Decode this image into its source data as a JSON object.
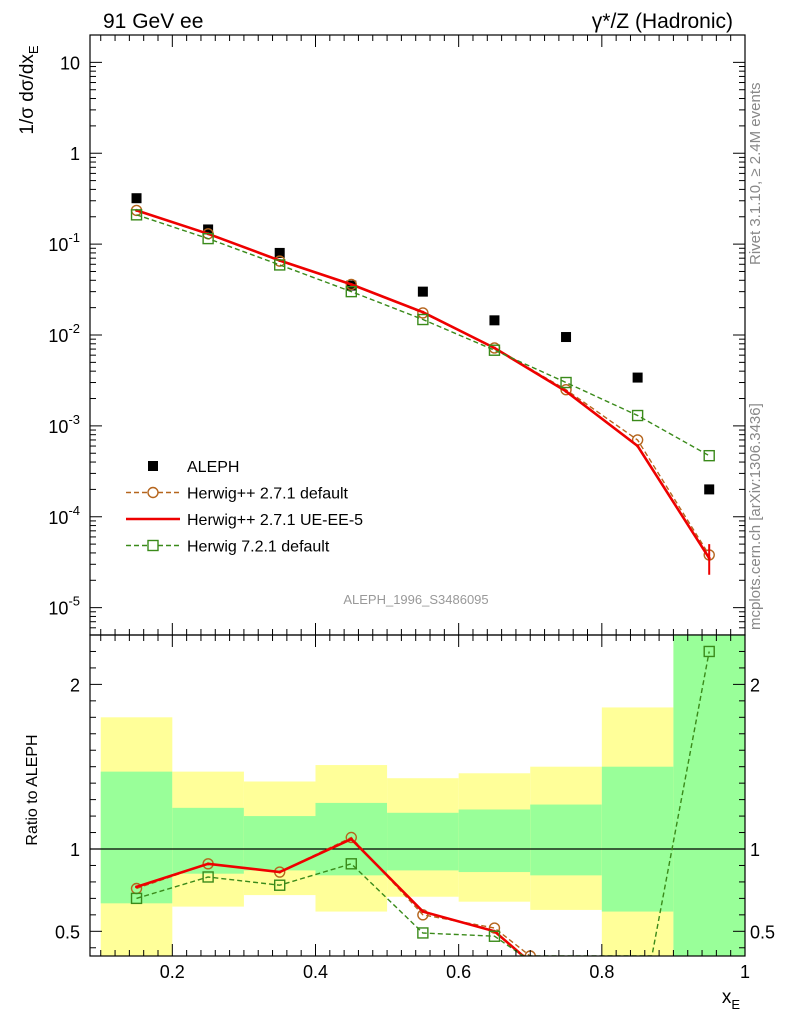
{
  "header": {
    "left": "91 GeV ee",
    "right": "γ*/Z (Hadronic)"
  },
  "side": {
    "rivet": "Rivet 3.1.10, ≥ 2.4M events",
    "mcplots": "mcplots.cern.ch [arXiv:1306.3436]"
  },
  "watermark": "ALEPH_1996_S3486095",
  "chart_data": [
    {
      "type": "scatter",
      "panel": "main",
      "ylabel": "1/σ dσ/dx_E",
      "yscale": "log",
      "ylim": [
        5e-06,
        20
      ],
      "xlim": [
        0.085,
        1.0
      ],
      "x": [
        0.15,
        0.25,
        0.35,
        0.45,
        0.55,
        0.65,
        0.75,
        0.85,
        0.95
      ],
      "x_edges": [
        0.1,
        0.2,
        0.3,
        0.4,
        0.5,
        0.6,
        0.7,
        0.8,
        0.9,
        1.0
      ],
      "yticks": [
        {
          "base": "10",
          "exp": "-5",
          "value": 1e-05
        },
        {
          "base": "10",
          "exp": "-4",
          "value": 0.0001
        },
        {
          "base": "10",
          "exp": "-3",
          "value": 0.001
        },
        {
          "base": "10",
          "exp": "-2",
          "value": 0.01
        },
        {
          "base": "10",
          "exp": "-1",
          "value": 0.1
        },
        {
          "base": "1",
          "exp": "",
          "value": 1
        },
        {
          "base": "10",
          "exp": "",
          "value": 10
        }
      ],
      "legend_position": "lower-left",
      "series": [
        {
          "name": "ALEPH",
          "style": "data",
          "color": "#000000",
          "values": [
            0.32,
            0.145,
            0.08,
            0.035,
            0.03,
            0.0145,
            0.0095,
            0.0034,
            0.0002
          ]
        },
        {
          "name": "Herwig++ 2.7.1 default",
          "style": "dashed-circle",
          "color": "#b5651d",
          "values": [
            0.235,
            0.13,
            0.065,
            0.036,
            0.0175,
            0.0072,
            0.0025,
            0.0007,
            3.8e-05
          ]
        },
        {
          "name": "Herwig++ 2.7.1 UE-EE-5",
          "style": "solid",
          "color": "#ee0000",
          "values": [
            0.235,
            0.13,
            0.066,
            0.036,
            0.0178,
            0.0072,
            0.0024,
            0.0006,
            3.5e-05
          ]
        },
        {
          "name": "Herwig 7.2.1 default",
          "style": "dashed-square",
          "color": "#3a8a1a",
          "values": [
            0.21,
            0.115,
            0.059,
            0.03,
            0.0148,
            0.0068,
            0.003,
            0.0013,
            0.00047
          ]
        }
      ]
    },
    {
      "type": "line",
      "panel": "ratio",
      "ylabel": "Ratio to ALEPH",
      "xlabel": "x_E",
      "ylim": [
        0.35,
        2.3
      ],
      "xlim": [
        0.085,
        1.0
      ],
      "xticks": [
        "0.2",
        "0.4",
        "0.6",
        "0.8",
        "1"
      ],
      "xtick_values": [
        0.2,
        0.4,
        0.6,
        0.8,
        1.0
      ],
      "yticks": [
        "0.5",
        "1",
        "2"
      ],
      "ytick_values": [
        0.5,
        1,
        2
      ],
      "bands": {
        "x_edges": [
          0.1,
          0.2,
          0.3,
          0.4,
          0.5,
          0.6,
          0.7,
          0.8,
          0.9,
          1.0
        ],
        "yellow_low": [
          0.35,
          0.65,
          0.72,
          0.62,
          0.71,
          0.68,
          0.63,
          0.35,
          0.35
        ],
        "yellow_high": [
          1.8,
          1.47,
          1.41,
          1.51,
          1.43,
          1.46,
          1.5,
          1.86,
          2.3
        ],
        "green_low": [
          0.67,
          0.85,
          0.87,
          0.84,
          0.87,
          0.86,
          0.84,
          0.62,
          0.35
        ],
        "green_high": [
          1.47,
          1.25,
          1.2,
          1.28,
          1.22,
          1.24,
          1.27,
          1.5,
          2.3
        ]
      },
      "series": [
        {
          "name": "Herwig++ 2.7.1 default",
          "style": "dashed-circle",
          "color": "#b5651d",
          "x": [
            0.15,
            0.25,
            0.35,
            0.45,
            0.55,
            0.65,
            0.7
          ],
          "values": [
            0.76,
            0.91,
            0.86,
            1.07,
            0.6,
            0.52,
            0.35
          ]
        },
        {
          "name": "Herwig++ 2.7.1 UE-EE-5",
          "style": "solid",
          "color": "#ee0000",
          "x": [
            0.15,
            0.25,
            0.35,
            0.45,
            0.55,
            0.65,
            0.69
          ],
          "values": [
            0.77,
            0.91,
            0.86,
            1.06,
            0.62,
            0.5,
            0.35
          ]
        },
        {
          "name": "Herwig 7.2.1 default",
          "style": "dashed-square",
          "color": "#3a8a1a",
          "x": [
            0.15,
            0.25,
            0.35,
            0.45,
            0.55,
            0.65,
            0.69,
            0.87,
            0.95
          ],
          "values": [
            0.7,
            0.83,
            0.78,
            0.91,
            0.49,
            0.47,
            0.35,
            0.35,
            2.2
          ],
          "marker_mask": [
            1,
            1,
            1,
            1,
            1,
            1,
            0,
            0,
            1
          ]
        }
      ]
    }
  ]
}
